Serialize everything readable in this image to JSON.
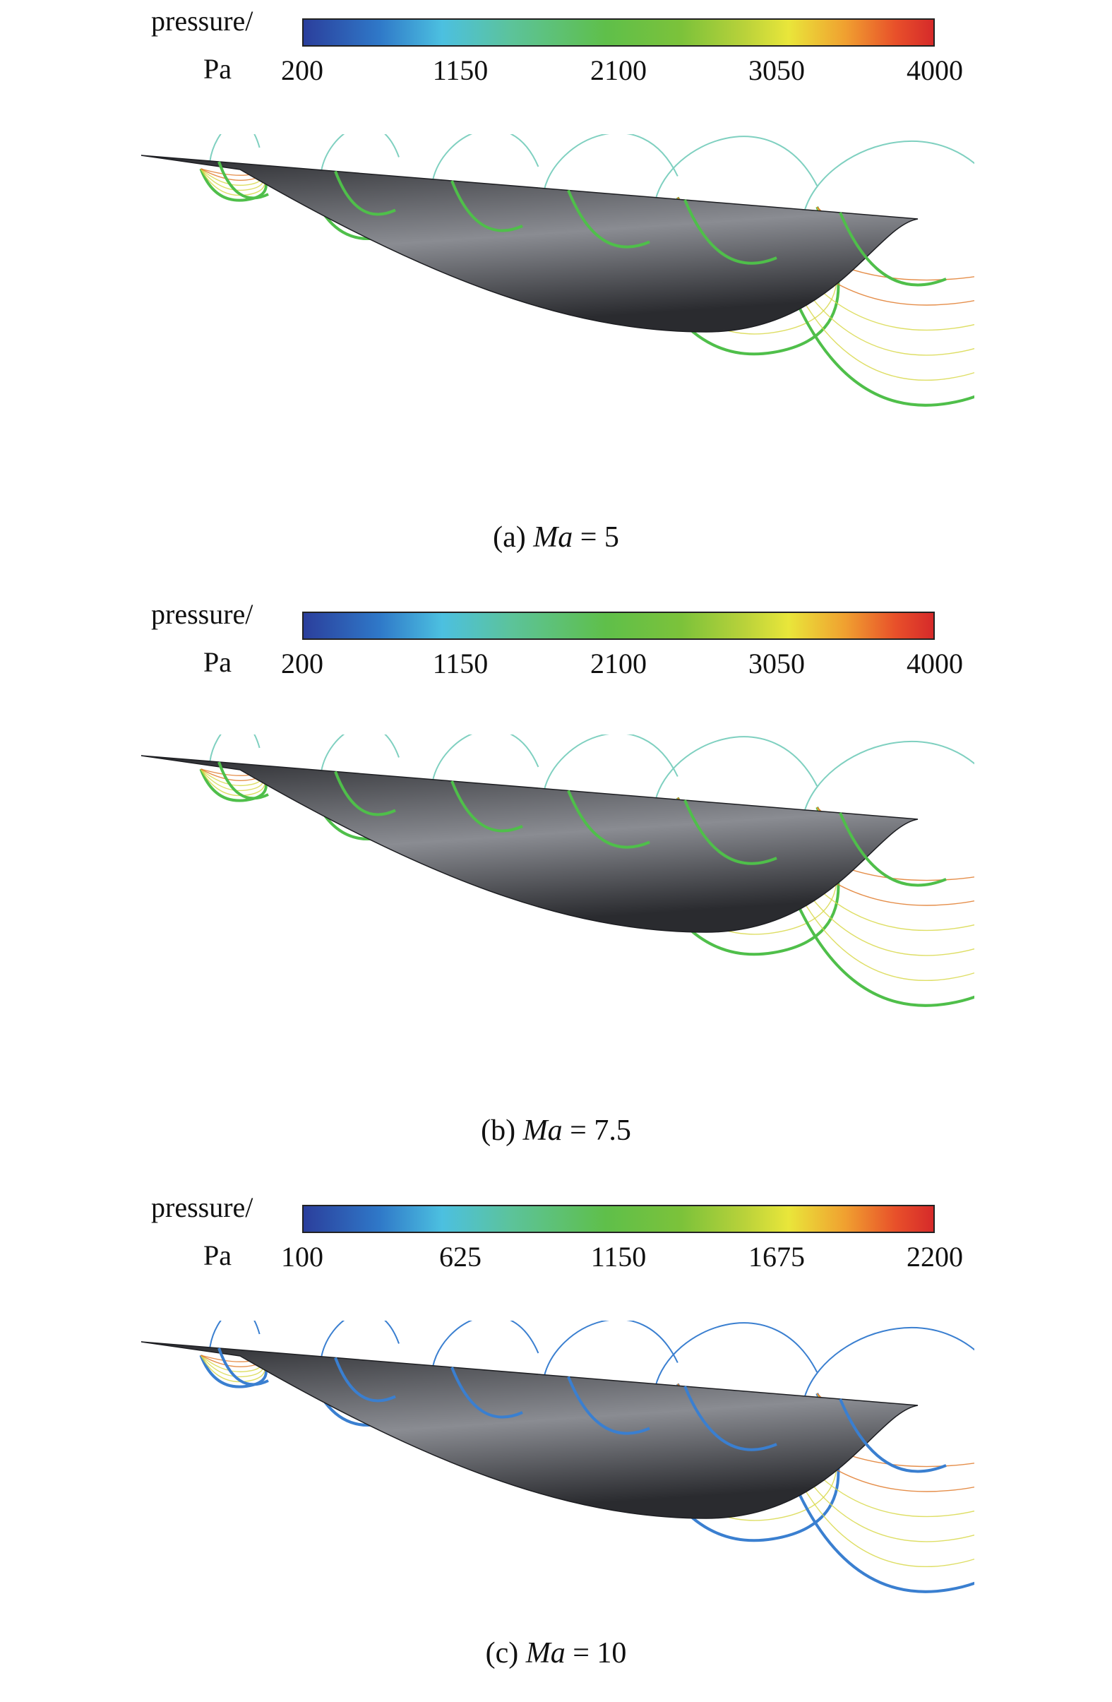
{
  "panels": [
    {
      "colorbar": {
        "label_line1": "pressure/",
        "label_line2": "Pa",
        "ticks": [
          "200",
          "1150",
          "2100",
          "3050",
          "4000"
        ]
      },
      "caption": {
        "prefix": "(a) ",
        "var": "Ma",
        "suffix": " = 5"
      }
    },
    {
      "colorbar": {
        "label_line1": "pressure/",
        "label_line2": "Pa",
        "ticks": [
          "200",
          "1150",
          "2100",
          "3050",
          "4000"
        ]
      },
      "caption": {
        "prefix": "(b) ",
        "var": "Ma",
        "suffix": " = 7.5"
      }
    },
    {
      "colorbar": {
        "label_line1": "pressure/",
        "label_line2": "Pa",
        "ticks": [
          "100",
          "625",
          "1150",
          "1675",
          "2200"
        ]
      },
      "caption": {
        "prefix": "(c) ",
        "var": "Ma",
        "suffix": " = 10"
      }
    }
  ],
  "colors": {
    "body_dark": "#2a2b2f",
    "body_light": "#8a8c92",
    "contour_green": "#4fbf4a",
    "contour_yellow": "#d8d84a",
    "contour_orange": "#e07a2a",
    "contour_cyan": "#7fd0c0",
    "contour_blue": "#3a7fd0"
  }
}
